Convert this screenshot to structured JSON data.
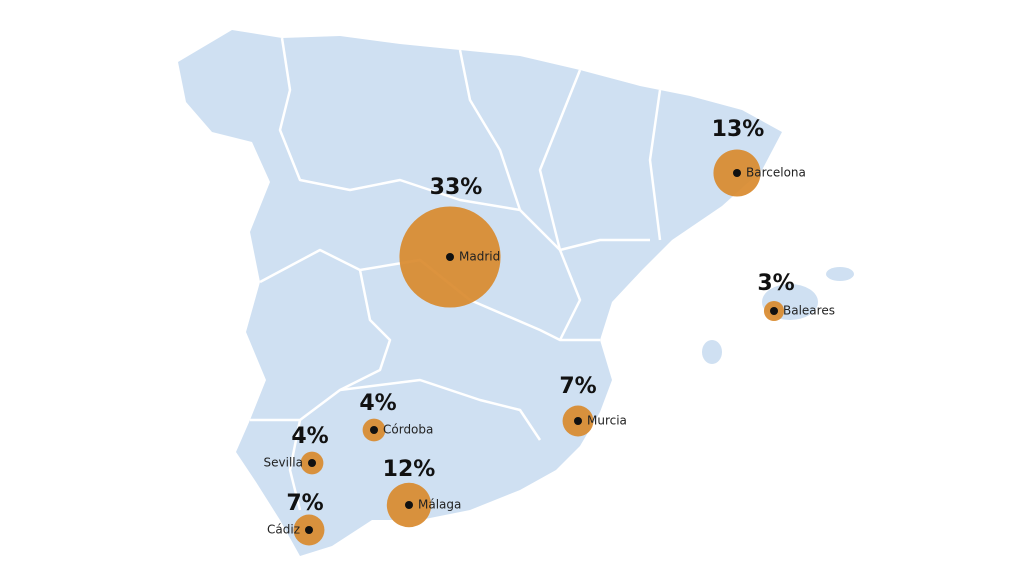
{
  "cities": [
    {
      "name": "Madrid",
      "value": 33,
      "value_label": "33%"
    },
    {
      "name": "Barcelona",
      "value": 13,
      "value_label": "13%"
    },
    {
      "name": "Baleares",
      "value": 3,
      "value_label": "3%"
    },
    {
      "name": "Murcia",
      "value": 7,
      "value_label": "7%"
    },
    {
      "name": "Córdoba",
      "value": 4,
      "value_label": "4%"
    },
    {
      "name": "Sevilla",
      "value": 4,
      "value_label": "4%"
    },
    {
      "name": "Málaga",
      "value": 12,
      "value_label": "12%"
    },
    {
      "name": "Cádiz",
      "value": 7,
      "value_label": "7%"
    }
  ]
}
